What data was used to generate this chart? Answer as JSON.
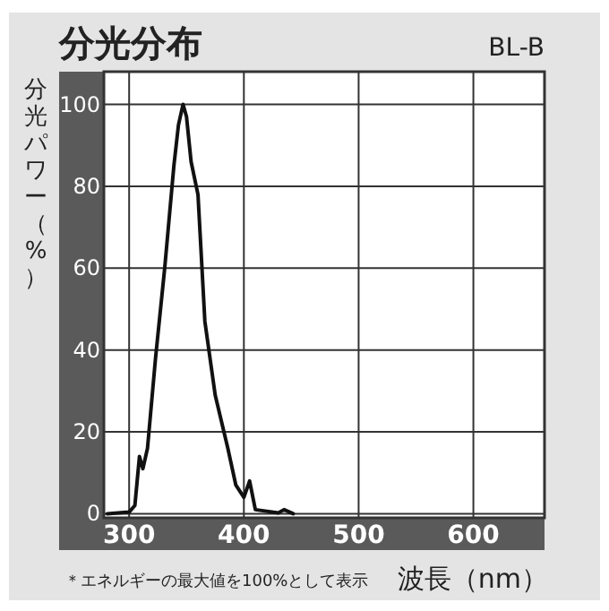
{
  "chart_data": {
    "type": "line",
    "title": "分光分布",
    "subtitle": "BL-B",
    "xlabel": "波長（nm）",
    "ylabel": "分光パワー（%）",
    "annotations": [
      "＊エネルギーの最大値を100%として表示"
    ],
    "xlim": [
      278,
      662
    ],
    "ylim": [
      -1,
      108
    ],
    "xticks": [
      300,
      400,
      500,
      600
    ],
    "yticks": [
      0,
      20,
      40,
      60,
      80,
      100
    ],
    "grid": true,
    "marker": "none",
    "line_style": "solid",
    "series": [
      {
        "color": "#111111",
        "x": [
          281,
          300,
          305,
          309,
          312,
          316,
          323,
          331,
          339,
          343,
          347,
          350,
          354,
          360,
          366,
          375,
          386,
          393,
          400,
          405,
          410,
          430,
          435,
          443
        ],
        "values": [
          0,
          0.4,
          2,
          14,
          11,
          16,
          38,
          60,
          85,
          95,
          100,
          97,
          86,
          78,
          47,
          29,
          16,
          7,
          4,
          8,
          1,
          0.2,
          1,
          0
        ]
      }
    ]
  }
}
